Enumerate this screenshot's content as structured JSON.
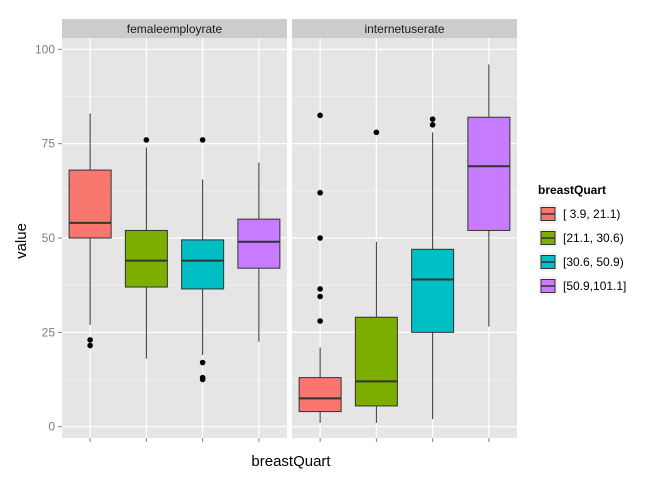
{
  "chart_data": {
    "type": "boxplot",
    "xlabel": "breastQuart",
    "ylabel": "value",
    "ylim": [
      -3,
      103
    ],
    "yticks": [
      0,
      25,
      50,
      75,
      100
    ],
    "grid": true,
    "legend": {
      "title": "breastQuart",
      "position": "right",
      "entries": [
        {
          "label": "[ 3.9, 21.1)",
          "color": "#F8766D"
        },
        {
          "label": "[21.1, 30.6)",
          "color": "#7CAE00"
        },
        {
          "label": "[30.6, 50.9)",
          "color": "#00BFC4"
        },
        {
          "label": "[50.9,101.1]",
          "color": "#C77CFF"
        }
      ]
    },
    "panels": [
      {
        "name": "femaleemployrate",
        "boxes": [
          {
            "group": "[ 3.9, 21.1)",
            "min": 27,
            "q1": 50,
            "median": 54,
            "q3": 68,
            "max": 83,
            "outliers": [
              23,
              21.5
            ]
          },
          {
            "group": "[21.1, 30.6)",
            "min": 18,
            "q1": 37,
            "median": 44,
            "q3": 52,
            "max": 74,
            "outliers": [
              76
            ]
          },
          {
            "group": "[30.6, 50.9)",
            "min": 19,
            "q1": 36.5,
            "median": 44,
            "q3": 49.5,
            "max": 65.5,
            "outliers": [
              76,
              17,
              13,
              12.5
            ]
          },
          {
            "group": "[50.9,101.1]",
            "min": 22.5,
            "q1": 42,
            "median": 49,
            "q3": 55,
            "max": 70,
            "outliers": []
          }
        ]
      },
      {
        "name": "internetuserate",
        "boxes": [
          {
            "group": "[ 3.9, 21.1)",
            "min": 1,
            "q1": 4,
            "median": 7.5,
            "q3": 13,
            "max": 21,
            "outliers": [
              28,
              34.5,
              36.5,
              50,
              62,
              82.5
            ]
          },
          {
            "group": "[21.1, 30.6)",
            "min": 1,
            "q1": 5.5,
            "median": 12,
            "q3": 29,
            "max": 49,
            "outliers": [
              78
            ]
          },
          {
            "group": "[30.6, 50.9)",
            "min": 2,
            "q1": 25,
            "median": 39,
            "q3": 47,
            "max": 78,
            "outliers": [
              80,
              81.5
            ]
          },
          {
            "group": "[50.9,101.1]",
            "min": 26.5,
            "q1": 52,
            "median": 69,
            "q3": 82,
            "max": 96,
            "outliers": []
          }
        ]
      }
    ]
  }
}
